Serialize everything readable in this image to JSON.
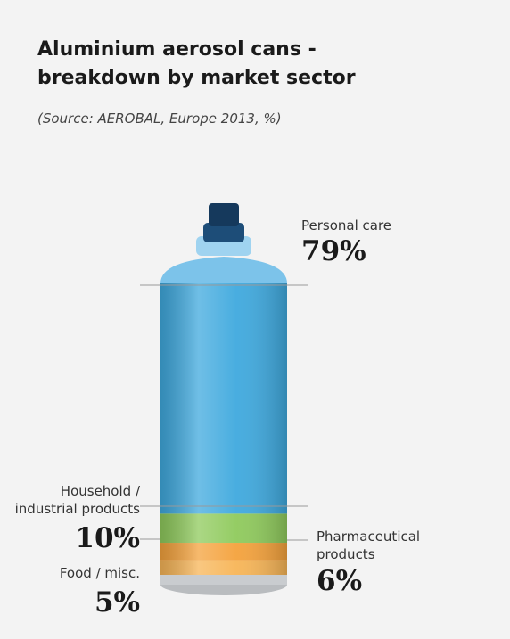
{
  "chart_data": {
    "type": "stacked-bar",
    "title": "Aluminium aerosol cans - breakdown by market sector",
    "subtitle": "(Source: AEROBAL, Europe 2013, %)",
    "categories": [
      "Food / misc.",
      "Pharmaceutical products",
      "Household / industrial products",
      "Personal care"
    ],
    "values": [
      5,
      6,
      10,
      79
    ],
    "value_labels": [
      "5%",
      "6%",
      "10%",
      "79%"
    ],
    "colors": [
      "#f7b557",
      "#f4a23c",
      "#8fca5c",
      "#3fa9de"
    ]
  }
}
